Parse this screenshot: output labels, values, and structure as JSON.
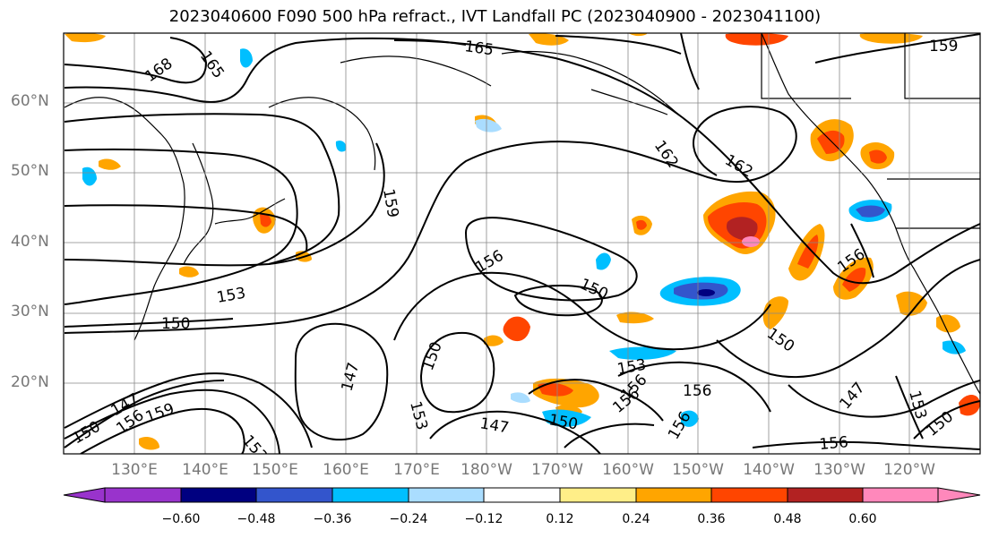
{
  "title": "2023040600 F090 500 hPa refract., IVT Landfall PC (2023040900 - 2023041100)",
  "lat_labels": [
    "60°N",
    "50°N",
    "40°N",
    "30°N",
    "20°N"
  ],
  "lon_labels": [
    "130°E",
    "140°E",
    "150°E",
    "160°E",
    "170°E",
    "180°W",
    "170°W",
    "160°W",
    "150°W",
    "140°W",
    "130°W",
    "120°W"
  ],
  "contour_labels": [
    "165",
    "168",
    "165",
    "159",
    "162",
    "162",
    "159",
    "156",
    "153",
    "150",
    "150",
    "156",
    "147",
    "150",
    "153",
    "147",
    "153",
    "156",
    "147",
    "150",
    "156",
    "156",
    "156",
    "150",
    "147",
    "153",
    "150",
    "156",
    "159",
    "153",
    "150",
    "156"
  ],
  "colorbar": {
    "tick_labels": [
      "−0.60",
      "−0.48",
      "−0.36",
      "−0.24",
      "−0.12",
      "0.12",
      "0.24",
      "0.36",
      "0.48",
      "0.60"
    ],
    "colors": [
      "#9933cc",
      "#000080",
      "#3355cc",
      "#00bfff",
      "#aaddff",
      "#ffffff",
      "#ffee88",
      "#ffa500",
      "#ff4500",
      "#b22222",
      "#ff88bb"
    ]
  }
}
